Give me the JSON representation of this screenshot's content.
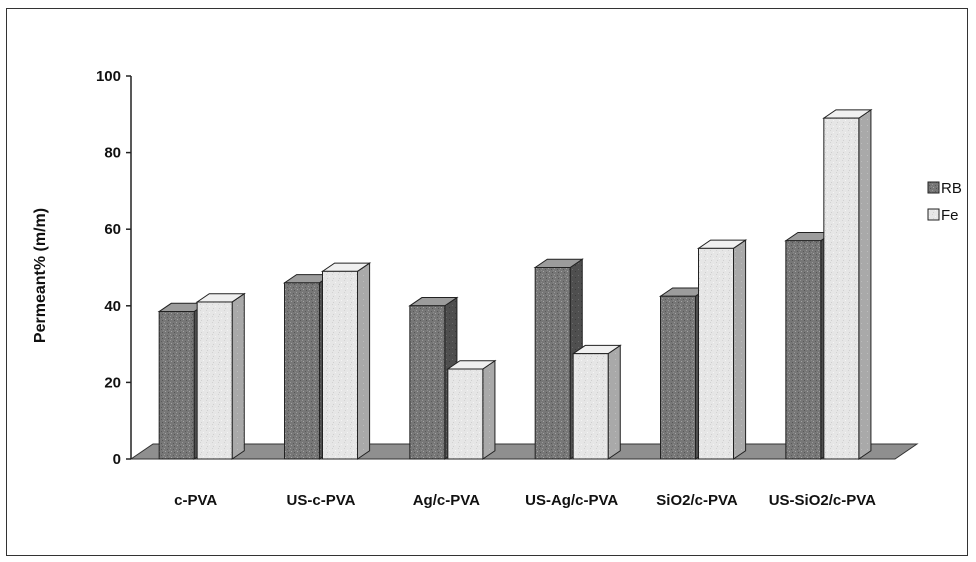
{
  "chart_data": {
    "type": "bar",
    "title": "",
    "xlabel": "",
    "ylabel": "Permeant% (m/m)",
    "ylim": [
      0,
      100
    ],
    "yticks": [
      "0",
      "20",
      "40",
      "60",
      "80",
      "100"
    ],
    "categories": [
      "c-PVA",
      "US-c-PVA",
      "Ag/c-PVA",
      "US-Ag/c-PVA",
      "SiO2/c-PVA",
      "US-SiO2/c-PVA"
    ],
    "series": [
      {
        "name": "RB",
        "values": [
          38.5,
          46,
          40,
          50,
          42.5,
          57
        ],
        "color": "#7f7f7f"
      },
      {
        "name": "Fe",
        "values": [
          41,
          49,
          23.5,
          27.5,
          55,
          89
        ],
        "color": "#e4e4e4"
      }
    ],
    "grid": false,
    "legend": "right",
    "style": "3d-clustered-column"
  }
}
